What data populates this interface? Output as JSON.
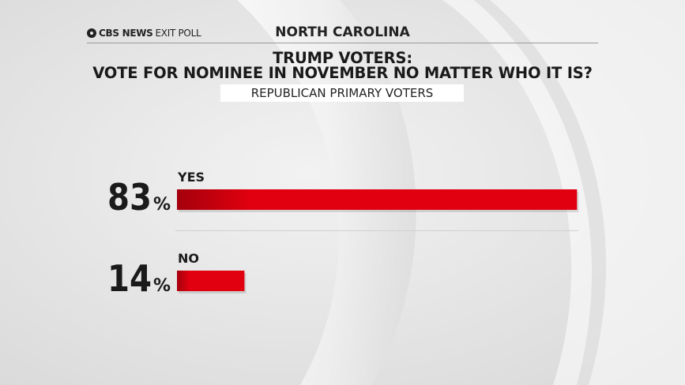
{
  "header": {
    "brand": "CBS NEWS",
    "brand_suffix": "EXIT POLL",
    "state": "NORTH CAROLINA"
  },
  "title_line1": "TRUMP VOTERS:",
  "title_line2": "VOTE FOR NOMINEE IN NOVEMBER NO MATTER WHO IT IS?",
  "subtitle": "REPUBLICAN PRIMARY VOTERS",
  "colors": {
    "bar": "#e0000f",
    "bar_dark": "#a4000c",
    "text": "#1a1a1a"
  },
  "chart_data": {
    "type": "bar",
    "orientation": "horizontal",
    "categories": [
      "YES",
      "NO"
    ],
    "values": [
      83,
      14
    ],
    "value_labels": [
      "83",
      "14"
    ],
    "unit": "%",
    "xlim": [
      0,
      100
    ],
    "title": "VOTE FOR NOMINEE IN NOVEMBER NO MATTER WHO IT IS?",
    "grid": false,
    "legend": "none"
  }
}
